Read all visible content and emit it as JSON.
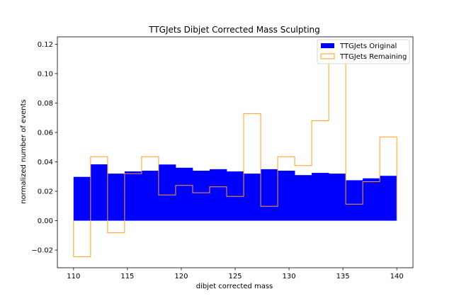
{
  "chart_data": {
    "type": "bar",
    "title": "TTGJets Dibjet Corrected Mass Sculpting",
    "xlabel": "dibjet corrected mass",
    "ylabel": "normalized number of events",
    "xlim": [
      108.5,
      141.5
    ],
    "ylim": [
      -0.032,
      0.125
    ],
    "x_ticks": [
      110,
      115,
      120,
      125,
      130,
      135,
      140
    ],
    "x_tick_labels": [
      "110",
      "115",
      "120",
      "125",
      "130",
      "135",
      "140"
    ],
    "y_ticks": [
      -0.02,
      0.0,
      0.02,
      0.04,
      0.06,
      0.08,
      0.1,
      0.12
    ],
    "y_tick_labels": [
      "−0.02",
      "0.00",
      "0.02",
      "0.04",
      "0.06",
      "0.08",
      "0.10",
      "0.12"
    ],
    "bin_edges": [
      110.0,
      111.579,
      113.158,
      114.737,
      116.316,
      117.895,
      119.474,
      121.053,
      122.632,
      124.211,
      125.789,
      127.368,
      128.947,
      130.526,
      132.105,
      133.684,
      135.263,
      136.842,
      138.421,
      140.0
    ],
    "grid": false,
    "legend_position": "top-right",
    "series": [
      {
        "name": "TTGJets Original",
        "style": "filled",
        "color": "#0000ff",
        "values": [
          0.0298,
          0.0383,
          0.032,
          0.0335,
          0.034,
          0.0382,
          0.036,
          0.034,
          0.035,
          0.0335,
          0.032,
          0.035,
          0.034,
          0.031,
          0.0325,
          0.032,
          0.0275,
          0.0288,
          0.0305
        ]
      },
      {
        "name": "TTGJets Remaining",
        "style": "step",
        "color": "#ff9f1c",
        "values": [
          -0.0245,
          0.0435,
          -0.0082,
          0.032,
          0.0435,
          0.0175,
          0.024,
          0.019,
          0.023,
          0.0165,
          0.0728,
          0.0098,
          0.0435,
          0.0375,
          0.068,
          0.114,
          0.0112,
          0.0265,
          0.057
        ]
      }
    ]
  }
}
